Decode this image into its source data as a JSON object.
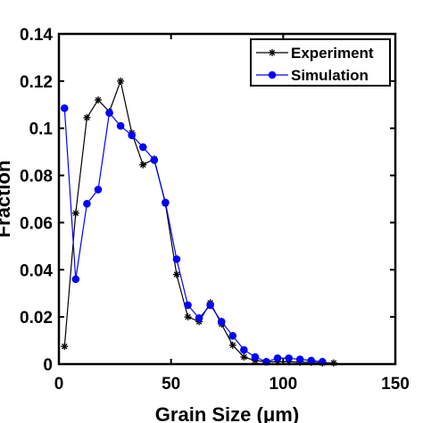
{
  "chart_data": {
    "type": "line",
    "xlabel": "Grain Size (μm)",
    "ylabel": "Fraction",
    "xlim": [
      0,
      150
    ],
    "ylim": [
      0,
      0.14
    ],
    "xticks": [
      0,
      50,
      100,
      150
    ],
    "yticks": [
      0,
      0.02,
      0.04,
      0.06,
      0.08,
      0.1,
      0.12,
      0.14
    ],
    "xtick_labels": [
      "0",
      "50",
      "100",
      "150"
    ],
    "ytick_labels": [
      "0",
      "0.02",
      "0.04",
      "0.06",
      "0.08",
      "0.1",
      "0.12",
      "0.14"
    ],
    "grid": false,
    "legend_position": "top-right",
    "series": [
      {
        "name": "Experiment",
        "color": "#000000",
        "marker": "asterisk",
        "x": [
          2.5,
          7.5,
          12.5,
          17.5,
          22.5,
          27.5,
          32.5,
          37.5,
          42.5,
          47.5,
          52.5,
          57.5,
          62.5,
          67.5,
          72.5,
          77.5,
          82.5,
          87.5,
          92.5,
          97.5,
          102.5,
          107.5,
          112.5,
          117.5,
          122.5
        ],
        "values": [
          0.0075,
          0.064,
          0.1045,
          0.112,
          0.107,
          0.12,
          0.098,
          0.0845,
          0.087,
          0.068,
          0.038,
          0.02,
          0.018,
          0.026,
          0.017,
          0.008,
          0.003,
          0.0015,
          0.001,
          0.001,
          0.001,
          0.0008,
          0.0008,
          0.0005,
          0.0005
        ]
      },
      {
        "name": "Simulation",
        "color": "#0000ff",
        "marker": "circle",
        "x": [
          2.5,
          7.5,
          12.5,
          17.5,
          22.5,
          27.5,
          32.5,
          37.5,
          42.5,
          47.5,
          52.5,
          57.5,
          62.5,
          67.5,
          72.5,
          77.5,
          82.5,
          87.5,
          92.5,
          97.5,
          102.5,
          107.5,
          112.5,
          117.5
        ],
        "values": [
          0.1085,
          0.036,
          0.068,
          0.074,
          0.1065,
          0.101,
          0.097,
          0.092,
          0.0865,
          0.0685,
          0.0445,
          0.025,
          0.0195,
          0.025,
          0.018,
          0.012,
          0.006,
          0.003,
          0.001,
          0.0025,
          0.0025,
          0.002,
          0.0015,
          0.001
        ]
      }
    ]
  }
}
